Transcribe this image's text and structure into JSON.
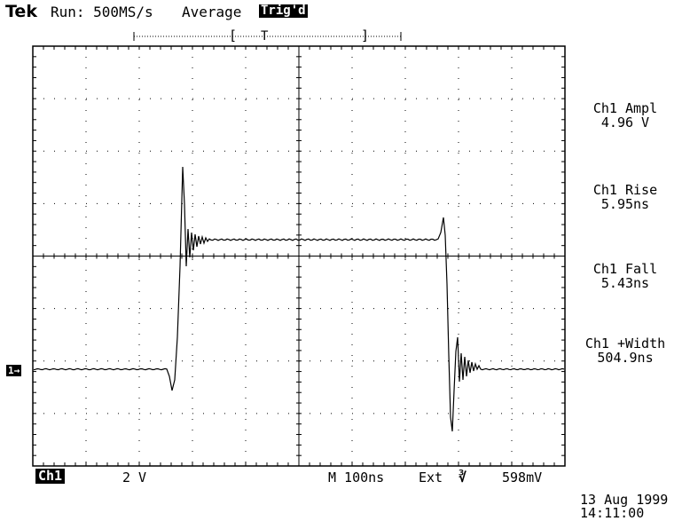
{
  "header": {
    "brand": "Tek",
    "run_status": "Run: 500MS/s",
    "mode": "Average",
    "trigger_status": "Trig'd"
  },
  "measurements": [
    {
      "label": "Ch1 Ampl",
      "value": "4.96 V"
    },
    {
      "label": "Ch1 Rise",
      "value": "5.95ns"
    },
    {
      "label": "Ch1 Fall",
      "value": "5.43ns"
    },
    {
      "label": "Ch1 +Width",
      "value": "504.9ns"
    }
  ],
  "footer": {
    "channel": "Ch1",
    "volts_per_div": "2 V",
    "timebase": "M 100ns",
    "trigger_source": "Ext",
    "trigger_level": "598mV",
    "date": "13 Aug 1999",
    "time": "14:11:00"
  },
  "channel_marker": "1",
  "record_window": {
    "bracket_left": "[",
    "trigger_mark": "T",
    "bracket_right": "]"
  },
  "colors": {
    "background": "#ffffff",
    "trace": "#000000"
  }
}
